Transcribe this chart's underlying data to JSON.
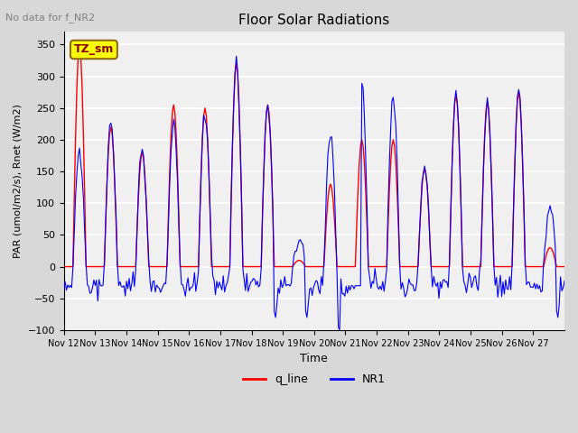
{
  "title": "Floor Solar Radiations",
  "subtitle": "No data for f_NR2",
  "xlabel": "Time",
  "ylabel": "PAR (umol/m2/s), Rnet (W/m2)",
  "ylim": [
    -100,
    370
  ],
  "yticks": [
    -100,
    -50,
    0,
    50,
    100,
    150,
    200,
    250,
    300,
    350
  ],
  "legend_labels": [
    "q_line",
    "NR1"
  ],
  "annotation_text": "TZ_sm",
  "background_color": "#d8d8d8",
  "plot_bg_color": "#f0f0f0",
  "x_tick_labels": [
    "Nov 12",
    "Nov 13",
    "Nov 14",
    "Nov 15",
    "Nov 16",
    "Nov 17",
    "Nov 18",
    "Nov 19",
    "Nov 20",
    "Nov 21",
    "Nov 22",
    "Nov 23",
    "Nov 24",
    "Nov 25",
    "Nov 26",
    "Nov 27"
  ],
  "num_days": 16,
  "seed": 42,
  "red_peaks": [
    350,
    220,
    180,
    255,
    250,
    320,
    255,
    10,
    130,
    200,
    200,
    155,
    270,
    260,
    275,
    30
  ],
  "blue_peaks": [
    185,
    230,
    185,
    225,
    240,
    320,
    255,
    45,
    210,
    290,
    265,
    155,
    275,
    260,
    278,
    95
  ]
}
